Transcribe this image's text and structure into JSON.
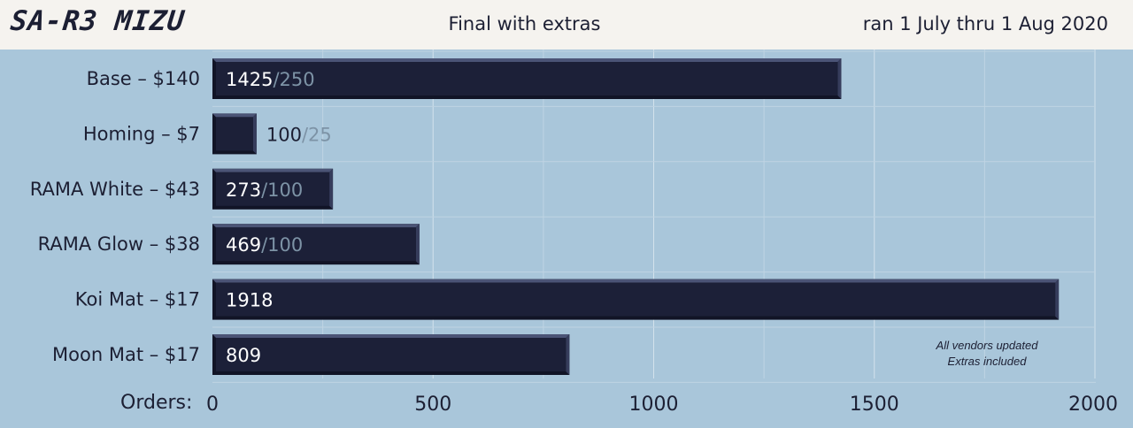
{
  "header": {
    "logo": "SA-R3 MIZU",
    "title": "Final with extras",
    "dates": "ran 1 July thru 1 Aug 2020"
  },
  "axis": {
    "label": "Orders:"
  },
  "note": {
    "line1": "All vendors updated",
    "line2": "Extras included"
  },
  "colors": {
    "background": "#a9c6da",
    "header": "#f5f3ef",
    "bar": "#1c2038",
    "text": "#1c1f33",
    "faded_text": "#7d93a6"
  },
  "chart_data": {
    "type": "bar",
    "orientation": "horizontal",
    "categories": [
      "Base – $140",
      "Homing – $7",
      "RAMA White – $43",
      "RAMA Glow – $38",
      "Koi Mat – $17",
      "Moon Mat – $17"
    ],
    "values": [
      1425,
      100,
      273,
      469,
      1918,
      809
    ],
    "targets": [
      "250",
      "25",
      "100",
      "100",
      "",
      ""
    ],
    "xlim": [
      0,
      2000
    ],
    "xticks": [
      0,
      500,
      1000,
      1500,
      2000
    ],
    "xlabel": "Orders:",
    "grid": true
  }
}
